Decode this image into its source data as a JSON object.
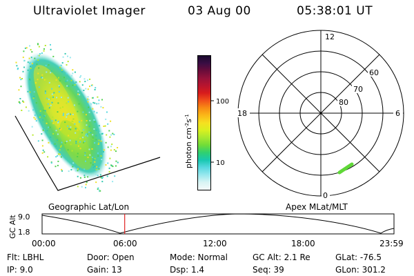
{
  "header": {
    "instrument": "Ultraviolet Imager",
    "date": "03 Aug 00",
    "time": "05:38:01 UT"
  },
  "colorbar": {
    "label": "photon cm",
    "label_sup1": "-2",
    "label_mid": "s",
    "label_sup2": "-1",
    "tick_high": "100",
    "tick_low": "10",
    "colors": [
      "#1a0a2e",
      "#3a0d44",
      "#6a0c3a",
      "#96123a",
      "#b8142e",
      "#d81c1c",
      "#f0501a",
      "#f88c14",
      "#fbb818",
      "#f6e020",
      "#d9f020",
      "#a8e830",
      "#70dc38",
      "#30d070",
      "#18c8b0",
      "#58d8e0",
      "#98e8ee",
      "#d8f4f4",
      "#f4fafa"
    ]
  },
  "polar": {
    "mlt_top": "12",
    "mlt_left": "18",
    "mlt_right": "6",
    "mlt_bottom": "0",
    "lat_60": "60",
    "lat_70": "70",
    "lat_80": "80"
  },
  "map_labels": {
    "left": "Geographic Lat/Lon",
    "right": "Apex MLat/MLT"
  },
  "timeline": {
    "axis_label": "GC Alt",
    "y_top": "9.0",
    "y_bottom": "1.8",
    "ticks": [
      "00:00",
      "06:00",
      "12:00",
      "18:00",
      "23:59"
    ],
    "marker_hour": 5.634
  },
  "status": {
    "flt": "Flt: LBHL",
    "ip": "IP:  9.0",
    "door": "Door: Open",
    "gain": "Gain: 13",
    "mode": "Mode: Normal",
    "dsp": "Dsp:     1.4",
    "gcalt": "GC Alt: 2.1 Re",
    "seq": "Seq: 39",
    "glat": "GLat: -76.5",
    "glon": "GLon: 301.2"
  }
}
